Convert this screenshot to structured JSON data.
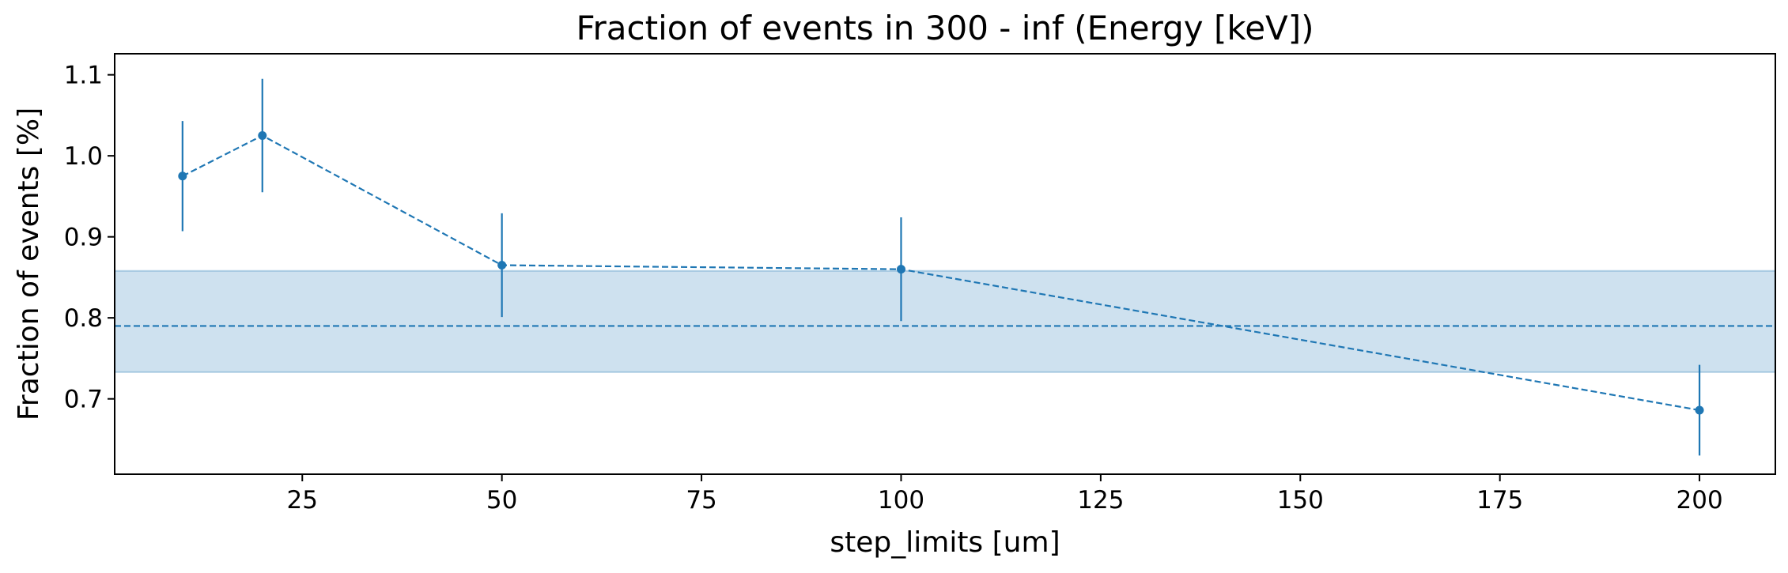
{
  "chart_data": {
    "type": "line",
    "title": "Fraction of events in 300 - inf (Energy [keV])",
    "xlabel": "step_limits [um]",
    "ylabel": "Fraction of events [%]",
    "xlim": [
      1.5,
      209.5
    ],
    "ylim": [
      0.607,
      1.126
    ],
    "xticks": [
      25,
      50,
      75,
      100,
      125,
      150,
      175,
      200
    ],
    "yticks": [
      0.7,
      0.8,
      0.9,
      1.0,
      1.1
    ],
    "ytick_labels": [
      "0.7",
      "0.8",
      "0.9",
      "1.0",
      "1.1"
    ],
    "grid": false,
    "series": [
      {
        "x": [
          10,
          20,
          50,
          100,
          200
        ],
        "y": [
          0.975,
          1.025,
          0.865,
          0.86,
          0.686
        ],
        "yerr": [
          0.068,
          0.07,
          0.064,
          0.064,
          0.056
        ],
        "color": "#1f77b4",
        "linestyle": "dashed",
        "marker": "circle"
      }
    ],
    "reference_line": {
      "y": 0.79,
      "color": "#1f77b4",
      "linestyle": "dashed"
    },
    "band": {
      "y_low": 0.733,
      "y_high": 0.858,
      "color": "#1f77b4",
      "alpha": 0.22
    }
  }
}
